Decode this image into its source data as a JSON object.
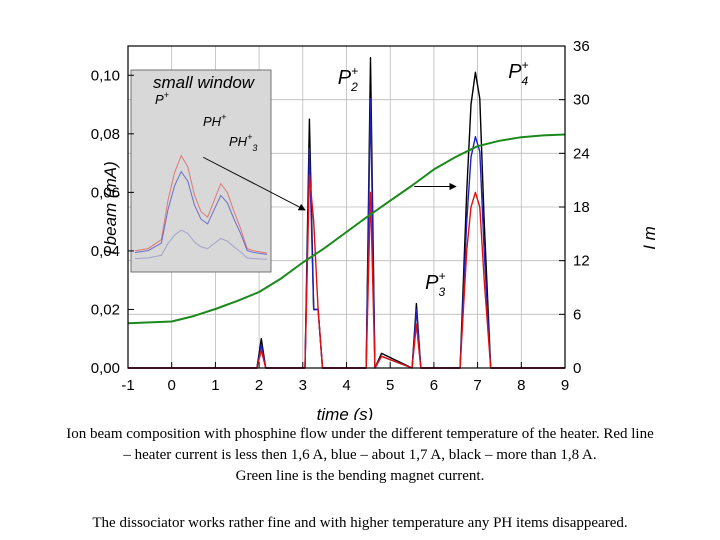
{
  "chart_data": {
    "type": "line",
    "xlabel": "time (s)",
    "ylabel_left": "I beam (mA)",
    "ylabel_right": "I m",
    "xlim": [
      -1,
      9
    ],
    "ylim_left": [
      0,
      0.11
    ],
    "ylim_right": [
      0,
      36
    ],
    "x_ticks": [
      "-1",
      "0",
      "1",
      "2",
      "3",
      "4",
      "5",
      "6",
      "7",
      "8",
      "9"
    ],
    "y_left_ticks": [
      "0,00",
      "0,02",
      "0,04",
      "0,06",
      "0,08",
      "0,10"
    ],
    "y_right_ticks": [
      "0",
      "6",
      "12",
      "18",
      "24",
      "30",
      "36"
    ],
    "grid": true,
    "series": [
      {
        "color": "#000000",
        "axis": "left",
        "points": [
          [
            -1,
            0.0
          ],
          [
            1.95,
            0.0
          ],
          [
            2.05,
            0.01
          ],
          [
            2.15,
            0.0
          ],
          [
            3.05,
            0.0
          ],
          [
            3.15,
            0.085
          ],
          [
            3.25,
            0.02
          ],
          [
            3.35,
            0.02
          ],
          [
            3.45,
            0.0
          ],
          [
            4.45,
            0.0
          ],
          [
            4.55,
            0.106
          ],
          [
            4.65,
            0.0
          ],
          [
            4.8,
            0.005
          ],
          [
            5.5,
            0.0
          ],
          [
            5.6,
            0.022
          ],
          [
            5.7,
            0.0
          ],
          [
            6.6,
            0.0
          ],
          [
            6.75,
            0.06
          ],
          [
            6.85,
            0.09
          ],
          [
            6.95,
            0.101
          ],
          [
            7.05,
            0.092
          ],
          [
            7.15,
            0.05
          ],
          [
            7.3,
            0.0
          ],
          [
            9,
            0.0
          ]
        ]
      },
      {
        "color": "#2020c0",
        "axis": "left",
        "points": [
          [
            -1,
            0.0
          ],
          [
            1.95,
            0.0
          ],
          [
            2.05,
            0.008
          ],
          [
            2.15,
            0.0
          ],
          [
            3.05,
            0.0
          ],
          [
            3.15,
            0.075
          ],
          [
            3.25,
            0.02
          ],
          [
            3.35,
            0.02
          ],
          [
            3.45,
            0.0
          ],
          [
            4.45,
            0.0
          ],
          [
            4.55,
            0.092
          ],
          [
            4.65,
            0.0
          ],
          [
            4.8,
            0.004
          ],
          [
            5.5,
            0.0
          ],
          [
            5.6,
            0.02
          ],
          [
            5.7,
            0.0
          ],
          [
            6.6,
            0.0
          ],
          [
            6.75,
            0.05
          ],
          [
            6.85,
            0.072
          ],
          [
            6.95,
            0.079
          ],
          [
            7.05,
            0.074
          ],
          [
            7.15,
            0.04
          ],
          [
            7.3,
            0.0
          ],
          [
            9,
            0.0
          ]
        ]
      },
      {
        "color": "#e01010",
        "axis": "left",
        "points": [
          [
            -1,
            0.0
          ],
          [
            1.95,
            0.0
          ],
          [
            2.05,
            0.006
          ],
          [
            2.15,
            0.0
          ],
          [
            3.05,
            0.0
          ],
          [
            3.15,
            0.066
          ],
          [
            3.25,
            0.05
          ],
          [
            3.35,
            0.02
          ],
          [
            3.45,
            0.0
          ],
          [
            4.45,
            0.0
          ],
          [
            4.55,
            0.06
          ],
          [
            4.65,
            0.0
          ],
          [
            4.8,
            0.004
          ],
          [
            5.5,
            0.0
          ],
          [
            5.6,
            0.015
          ],
          [
            5.7,
            0.0
          ],
          [
            6.6,
            0.0
          ],
          [
            6.75,
            0.04
          ],
          [
            6.85,
            0.055
          ],
          [
            6.95,
            0.06
          ],
          [
            7.05,
            0.055
          ],
          [
            7.15,
            0.03
          ],
          [
            7.3,
            0.0
          ],
          [
            9,
            0.0
          ]
        ]
      },
      {
        "color": "#1a8a1a",
        "axis": "right",
        "points": [
          [
            -1,
            5.0
          ],
          [
            0,
            5.2
          ],
          [
            0.5,
            5.8
          ],
          [
            1,
            6.6
          ],
          [
            1.5,
            7.5
          ],
          [
            2,
            8.5
          ],
          [
            2.5,
            10.0
          ],
          [
            3,
            11.8
          ],
          [
            3.5,
            13.4
          ],
          [
            4,
            15.2
          ],
          [
            4.5,
            17.0
          ],
          [
            5,
            18.7
          ],
          [
            5.5,
            20.4
          ],
          [
            6,
            22.2
          ],
          [
            6.5,
            23.6
          ],
          [
            7,
            24.8
          ],
          [
            7.5,
            25.4
          ],
          [
            8,
            25.8
          ],
          [
            8.5,
            26.0
          ],
          [
            9,
            26.1
          ]
        ]
      }
    ],
    "annotations": [
      {
        "text": "P",
        "sup": "+",
        "sub": "2",
        "x": 3.8,
        "y": 0.097
      },
      {
        "text": "P",
        "sup": "+",
        "sub": "4",
        "x": 7.7,
        "y": 0.099
      },
      {
        "text": "P",
        "sup": "+",
        "sub": "3",
        "x": 5.8,
        "y": 0.027
      }
    ],
    "inset": {
      "title": "small window",
      "labels": [
        {
          "text": "P",
          "sup": "+",
          "sub": ""
        },
        {
          "text": "PH",
          "sup": "+",
          "sub": ""
        },
        {
          "text": "PH",
          "sup": "+",
          "sub": "3"
        }
      ]
    },
    "arrows": [
      {
        "from": [
          0.72,
          0.072
        ],
        "to": [
          3.05,
          0.054
        ]
      },
      {
        "from": [
          5.55,
          0.062
        ],
        "to": [
          6.5,
          0.062
        ]
      }
    ]
  },
  "caption": {
    "line1": "Ion beam composition with phosphine flow under the different temperature of the heater. Red line",
    "line2": "– heater   current is less then 1,6 A, blue – about 1,7 A, black – more than 1,8 A.",
    "line3": "Green line is the bending magnet current.",
    "line4": "The dissociator works rather fine and with higher temperature any PH items disappeared."
  }
}
